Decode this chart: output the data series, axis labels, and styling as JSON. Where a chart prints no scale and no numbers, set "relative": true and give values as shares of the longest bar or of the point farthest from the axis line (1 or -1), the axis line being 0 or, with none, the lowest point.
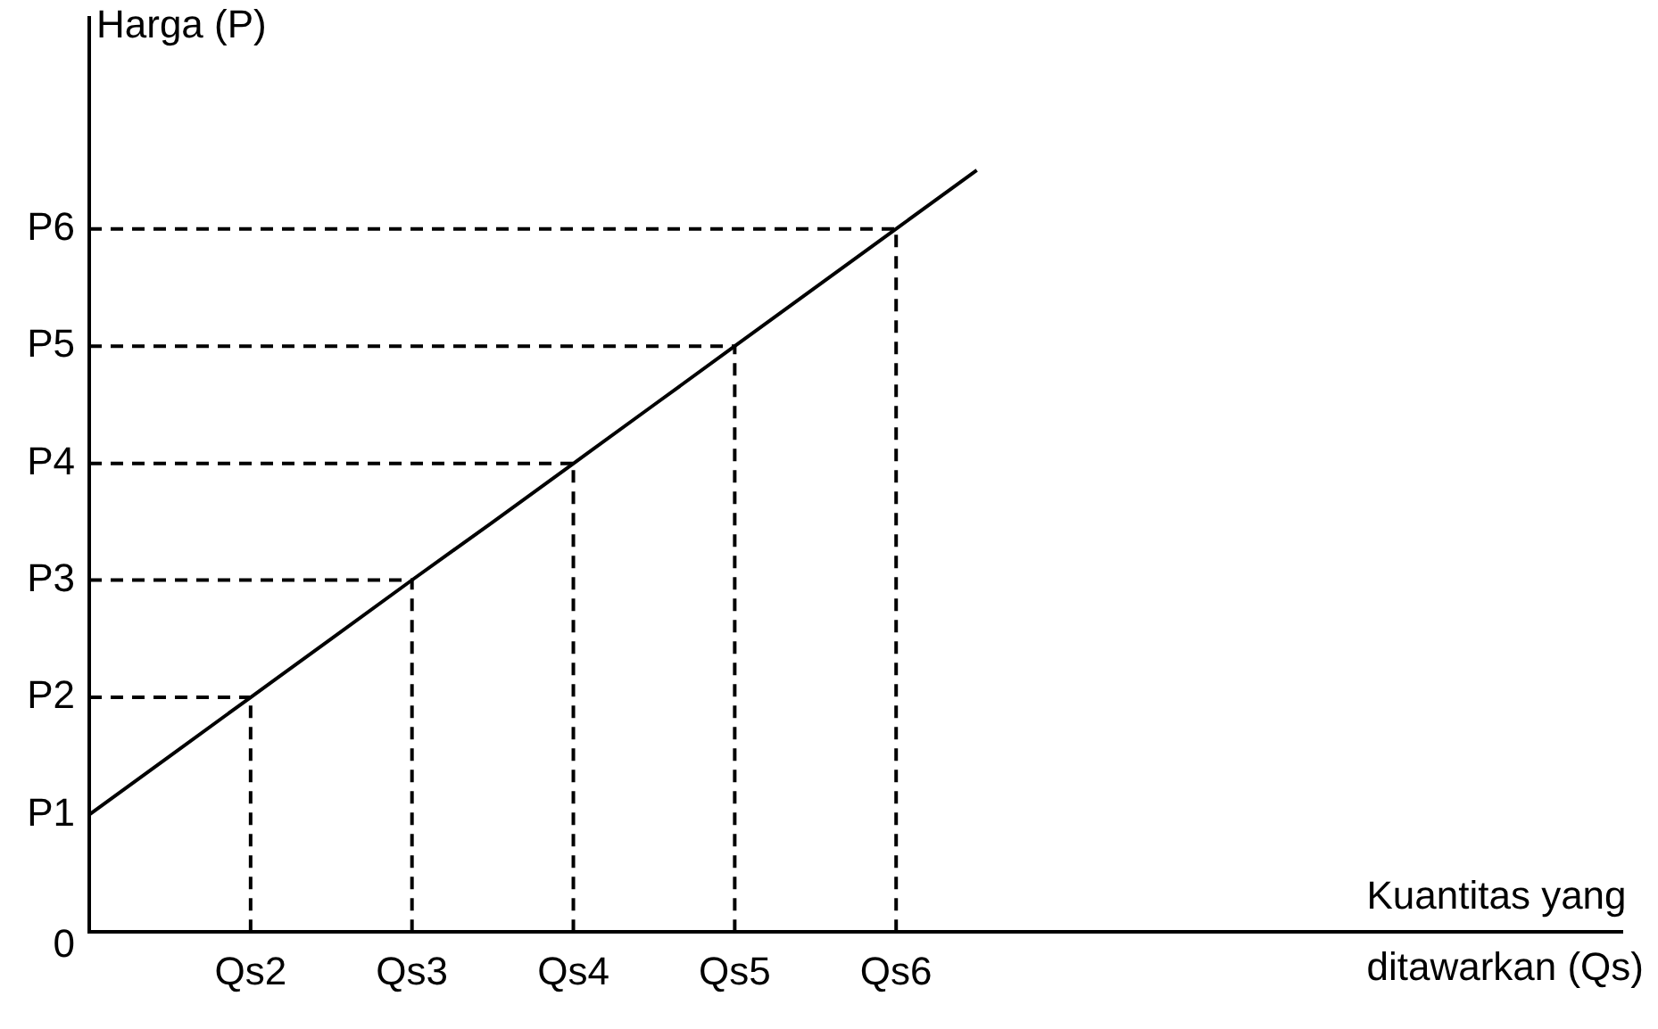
{
  "chart_data": {
    "type": "line",
    "relative": true,
    "ylabel": "Harga (P)",
    "xlabel": "Kuantitas yang ditawarkan (Qs)",
    "categories": [
      null,
      null,
      "Qs2",
      null,
      "Qs3",
      null,
      "Qs4",
      null,
      "Qs5",
      null,
      "Qs6",
      null,
      null,
      null,
      null,
      null,
      null,
      null,
      null,
      null
    ],
    "grid": false,
    "legend": false,
    "marker": "none",
    "annotations": [
      "0"
    ],
    "series": [
      {
        "name": "P1",
        "color": "#000000",
        "line_style": "solid",
        "values": [
          0.154,
          0.231,
          0.308,
          0.385,
          0.462,
          0.538,
          0.615,
          0.692,
          0.769,
          0.846,
          0.923,
          1.0,
          null,
          null,
          null,
          null,
          null,
          null,
          null,
          null
        ]
      },
      {
        "name": "P2",
        "color": "#000000",
        "line_style": "dashed",
        "values": [
          0.308,
          0.308,
          0.308,
          null,
          null,
          null,
          null,
          null,
          null,
          null,
          null,
          null,
          null,
          null,
          null,
          null,
          null,
          null,
          null,
          null
        ]
      },
      {
        "color": "#000000",
        "line_style": "dashed",
        "x": [
          "Qs2",
          "Qs2"
        ],
        "values": [
          0,
          0.308
        ]
      },
      {
        "name": "P3",
        "color": "#000000",
        "line_style": "dashed",
        "values": [
          0.462,
          0.462,
          0.462,
          0.462,
          0.462,
          null,
          null,
          null,
          null,
          null,
          null,
          null,
          null,
          null,
          null,
          null,
          null,
          null,
          null,
          null
        ]
      },
      {
        "color": "#000000",
        "line_style": "dashed",
        "x": [
          "Qs3",
          "Qs3"
        ],
        "values": [
          0,
          0.462
        ]
      },
      {
        "name": "P4",
        "color": "#000000",
        "line_style": "dashed",
        "values": [
          0.615,
          0.615,
          0.615,
          0.615,
          0.615,
          0.615,
          0.615,
          null,
          null,
          null,
          null,
          null,
          null,
          null,
          null,
          null,
          null,
          null,
          null,
          null
        ]
      },
      {
        "color": "#000000",
        "line_style": "dashed",
        "x": [
          "Qs4",
          "Qs4"
        ],
        "values": [
          0,
          0.615
        ]
      },
      {
        "name": "P5",
        "color": "#000000",
        "line_style": "dashed",
        "values": [
          0.769,
          0.769,
          0.769,
          0.769,
          0.769,
          0.769,
          0.769,
          0.769,
          0.769,
          null,
          null,
          null,
          null,
          null,
          null,
          null,
          null,
          null,
          null,
          null
        ]
      },
      {
        "color": "#000000",
        "line_style": "dashed",
        "x": [
          "Qs5",
          "Qs5"
        ],
        "values": [
          0,
          0.769
        ]
      },
      {
        "name": "P6",
        "color": "#000000",
        "line_style": "dashed",
        "values": [
          0.923,
          0.923,
          0.923,
          0.923,
          0.923,
          0.923,
          0.923,
          0.923,
          0.923,
          0.923,
          0.923,
          null,
          null,
          null,
          null,
          null,
          null,
          null,
          null,
          null
        ]
      },
      {
        "color": "#000000",
        "line_style": "dashed",
        "x": [
          "Qs6",
          "Qs6"
        ],
        "values": [
          0,
          0.923
        ]
      }
    ]
  }
}
